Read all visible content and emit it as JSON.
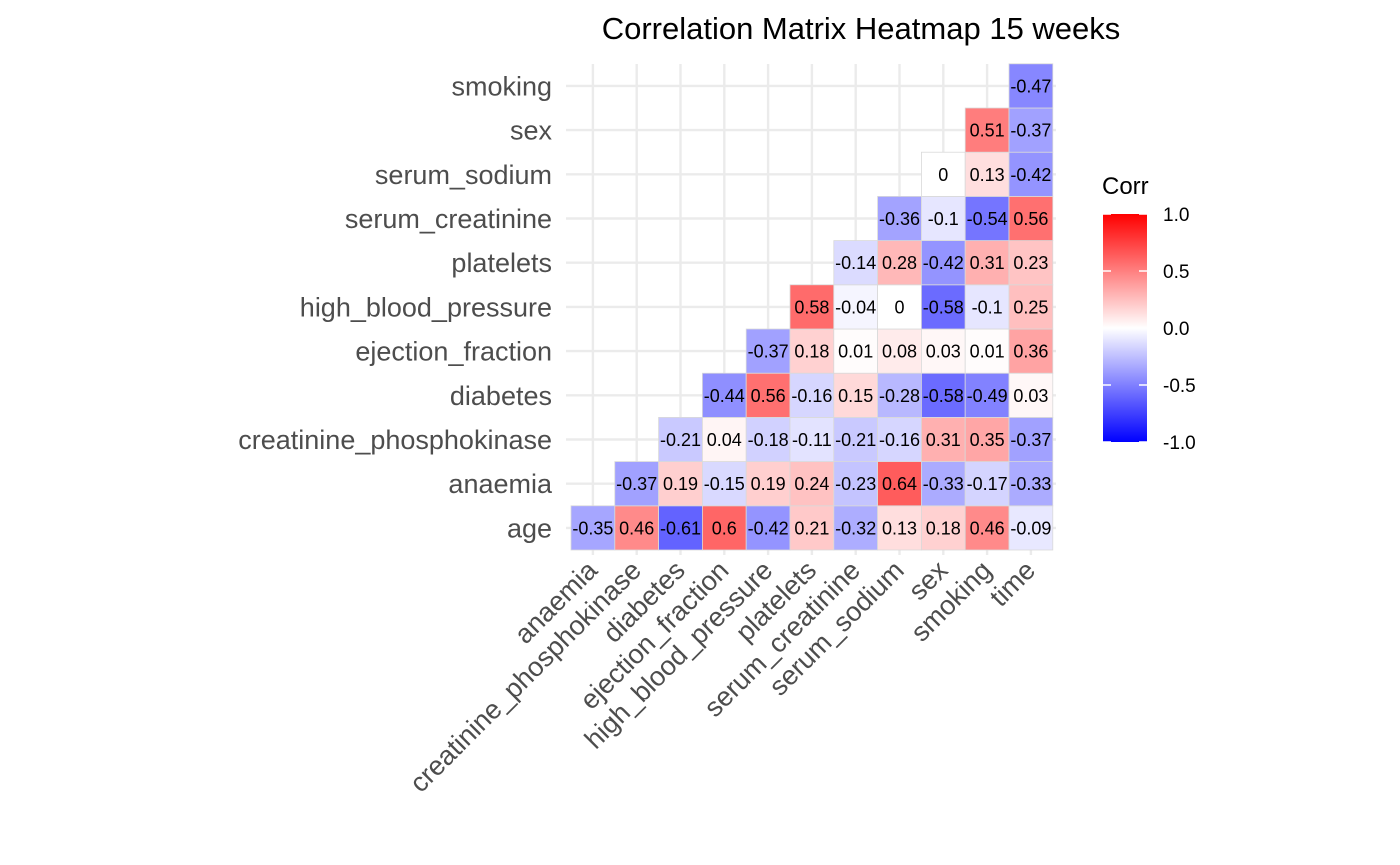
{
  "chart_data": {
    "type": "heatmap",
    "title": "Correlation Matrix Heatmap 15 weeks",
    "x_categories": [
      "anaemia",
      "creatinine_phosphokinase",
      "diabetes",
      "ejection_fraction",
      "high_blood_pressure",
      "platelets",
      "serum_creatinine",
      "serum_sodium",
      "sex",
      "smoking",
      "time"
    ],
    "y_categories": [
      "age",
      "anaemia",
      "creatinine_phosphokinase",
      "diabetes",
      "ejection_fraction",
      "high_blood_pressure",
      "platelets",
      "serum_creatinine",
      "serum_sodium",
      "sex",
      "smoking"
    ],
    "cells": [
      {
        "x": "anaemia",
        "y": "age",
        "value": -0.35
      },
      {
        "x": "creatinine_phosphokinase",
        "y": "age",
        "value": 0.46
      },
      {
        "x": "diabetes",
        "y": "age",
        "value": -0.61
      },
      {
        "x": "ejection_fraction",
        "y": "age",
        "value": 0.6
      },
      {
        "x": "high_blood_pressure",
        "y": "age",
        "value": -0.42
      },
      {
        "x": "platelets",
        "y": "age",
        "value": 0.21
      },
      {
        "x": "serum_creatinine",
        "y": "age",
        "value": -0.32
      },
      {
        "x": "serum_sodium",
        "y": "age",
        "value": 0.13
      },
      {
        "x": "sex",
        "y": "age",
        "value": 0.18
      },
      {
        "x": "smoking",
        "y": "age",
        "value": 0.46
      },
      {
        "x": "time",
        "y": "age",
        "value": -0.09
      },
      {
        "x": "creatinine_phosphokinase",
        "y": "anaemia",
        "value": -0.37
      },
      {
        "x": "diabetes",
        "y": "anaemia",
        "value": 0.19
      },
      {
        "x": "ejection_fraction",
        "y": "anaemia",
        "value": -0.15
      },
      {
        "x": "high_blood_pressure",
        "y": "anaemia",
        "value": 0.19
      },
      {
        "x": "platelets",
        "y": "anaemia",
        "value": 0.24
      },
      {
        "x": "serum_creatinine",
        "y": "anaemia",
        "value": -0.23
      },
      {
        "x": "serum_sodium",
        "y": "anaemia",
        "value": 0.64
      },
      {
        "x": "sex",
        "y": "anaemia",
        "value": -0.33
      },
      {
        "x": "smoking",
        "y": "anaemia",
        "value": -0.17
      },
      {
        "x": "time",
        "y": "anaemia",
        "value": -0.33
      },
      {
        "x": "diabetes",
        "y": "creatinine_phosphokinase",
        "value": -0.21
      },
      {
        "x": "ejection_fraction",
        "y": "creatinine_phosphokinase",
        "value": 0.04
      },
      {
        "x": "high_blood_pressure",
        "y": "creatinine_phosphokinase",
        "value": -0.18
      },
      {
        "x": "platelets",
        "y": "creatinine_phosphokinase",
        "value": -0.11
      },
      {
        "x": "serum_creatinine",
        "y": "creatinine_phosphokinase",
        "value": -0.21
      },
      {
        "x": "serum_sodium",
        "y": "creatinine_phosphokinase",
        "value": -0.16
      },
      {
        "x": "sex",
        "y": "creatinine_phosphokinase",
        "value": 0.31
      },
      {
        "x": "smoking",
        "y": "creatinine_phosphokinase",
        "value": 0.35
      },
      {
        "x": "time",
        "y": "creatinine_phosphokinase",
        "value": -0.37
      },
      {
        "x": "ejection_fraction",
        "y": "diabetes",
        "value": -0.44
      },
      {
        "x": "high_blood_pressure",
        "y": "diabetes",
        "value": 0.56
      },
      {
        "x": "platelets",
        "y": "diabetes",
        "value": -0.16
      },
      {
        "x": "serum_creatinine",
        "y": "diabetes",
        "value": 0.15
      },
      {
        "x": "serum_sodium",
        "y": "diabetes",
        "value": -0.28
      },
      {
        "x": "sex",
        "y": "diabetes",
        "value": -0.58
      },
      {
        "x": "smoking",
        "y": "diabetes",
        "value": -0.49
      },
      {
        "x": "time",
        "y": "diabetes",
        "value": 0.03
      },
      {
        "x": "high_blood_pressure",
        "y": "ejection_fraction",
        "value": -0.37
      },
      {
        "x": "platelets",
        "y": "ejection_fraction",
        "value": 0.18
      },
      {
        "x": "serum_creatinine",
        "y": "ejection_fraction",
        "value": 0.01
      },
      {
        "x": "serum_sodium",
        "y": "ejection_fraction",
        "value": 0.08
      },
      {
        "x": "sex",
        "y": "ejection_fraction",
        "value": 0.03
      },
      {
        "x": "smoking",
        "y": "ejection_fraction",
        "value": 0.01
      },
      {
        "x": "time",
        "y": "ejection_fraction",
        "value": 0.36
      },
      {
        "x": "platelets",
        "y": "high_blood_pressure",
        "value": 0.58
      },
      {
        "x": "serum_creatinine",
        "y": "high_blood_pressure",
        "value": -0.04
      },
      {
        "x": "serum_sodium",
        "y": "high_blood_pressure",
        "value": 0
      },
      {
        "x": "sex",
        "y": "high_blood_pressure",
        "value": -0.58
      },
      {
        "x": "smoking",
        "y": "high_blood_pressure",
        "value": -0.1
      },
      {
        "x": "time",
        "y": "high_blood_pressure",
        "value": 0.25
      },
      {
        "x": "serum_creatinine",
        "y": "platelets",
        "value": -0.14
      },
      {
        "x": "serum_sodium",
        "y": "platelets",
        "value": 0.28
      },
      {
        "x": "sex",
        "y": "platelets",
        "value": -0.42
      },
      {
        "x": "smoking",
        "y": "platelets",
        "value": 0.31
      },
      {
        "x": "time",
        "y": "platelets",
        "value": 0.23
      },
      {
        "x": "serum_sodium",
        "y": "serum_creatinine",
        "value": -0.36
      },
      {
        "x": "sex",
        "y": "serum_creatinine",
        "value": -0.1
      },
      {
        "x": "smoking",
        "y": "serum_creatinine",
        "value": -0.54
      },
      {
        "x": "time",
        "y": "serum_creatinine",
        "value": 0.56
      },
      {
        "x": "sex",
        "y": "serum_sodium",
        "value": 0
      },
      {
        "x": "smoking",
        "y": "serum_sodium",
        "value": 0.13
      },
      {
        "x": "time",
        "y": "serum_sodium",
        "value": -0.42
      },
      {
        "x": "smoking",
        "y": "sex",
        "value": 0.51
      },
      {
        "x": "time",
        "y": "sex",
        "value": -0.37
      },
      {
        "x": "time",
        "y": "smoking",
        "value": -0.47
      }
    ],
    "color_scale": {
      "low": "#0000ff",
      "mid": "#ffffff",
      "high": "#ff0000",
      "limits": [
        -1,
        1
      ]
    },
    "legend": {
      "title": "Corr",
      "position": "right",
      "ticks": [
        {
          "value": 1,
          "label": "1.0"
        },
        {
          "value": 0.5,
          "label": "0.5"
        },
        {
          "value": 0,
          "label": "0.0"
        },
        {
          "value": -0.5,
          "label": "-0.5"
        },
        {
          "value": -1,
          "label": "-1.0"
        }
      ]
    },
    "grid": true
  }
}
